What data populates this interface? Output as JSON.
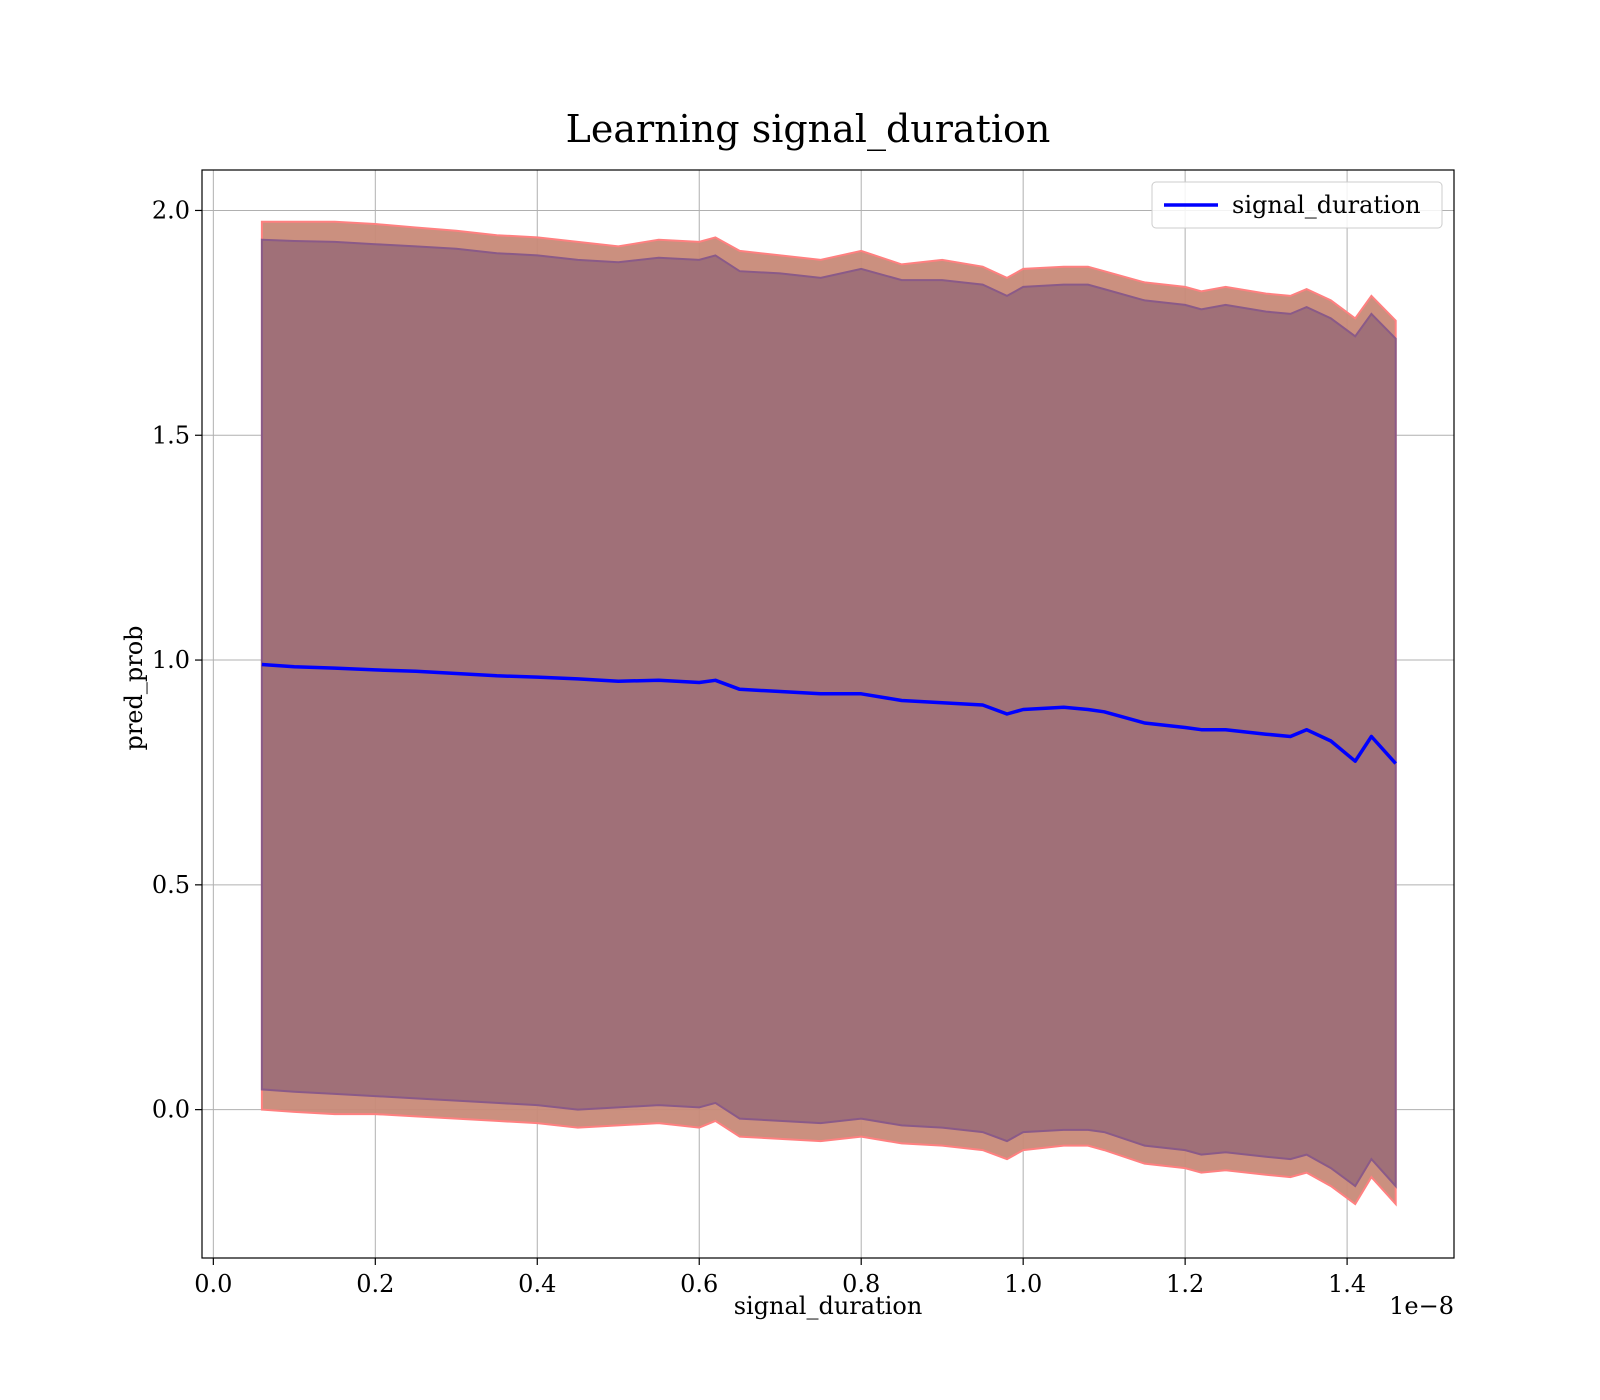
{
  "chart_data": {
    "type": "line",
    "title": "Learning signal_duration",
    "xlabel": "signal_duration",
    "ylabel": "pred_prob",
    "x_offset_label": "1e−8",
    "xlim": [
      -0.014,
      1.532
    ],
    "ylim": [
      -0.33,
      2.09
    ],
    "x_ticks": [
      0.0,
      0.2,
      0.4,
      0.6,
      0.8,
      1.0,
      1.2,
      1.4
    ],
    "x_tick_labels": [
      "0.0",
      "0.2",
      "0.4",
      "0.6",
      "0.8",
      "1.0",
      "1.2",
      "1.4"
    ],
    "y_ticks": [
      0.0,
      0.5,
      1.0,
      1.5,
      2.0
    ],
    "y_tick_labels": [
      "0.0",
      "0.5",
      "1.0",
      "1.5",
      "2.0"
    ],
    "grid": true,
    "legend_position": "upper right",
    "series": [
      {
        "name": "signal_duration",
        "color": "#0000ff",
        "x": [
          0.06,
          0.1,
          0.15,
          0.2,
          0.25,
          0.3,
          0.35,
          0.4,
          0.45,
          0.5,
          0.55,
          0.6,
          0.62,
          0.65,
          0.7,
          0.75,
          0.8,
          0.85,
          0.9,
          0.95,
          0.98,
          1.0,
          1.05,
          1.08,
          1.1,
          1.15,
          1.2,
          1.22,
          1.25,
          1.3,
          1.33,
          1.35,
          1.38,
          1.41,
          1.43,
          1.46
        ],
        "y": [
          0.99,
          0.985,
          0.982,
          0.978,
          0.975,
          0.97,
          0.965,
          0.962,
          0.958,
          0.953,
          0.955,
          0.95,
          0.955,
          0.935,
          0.93,
          0.925,
          0.925,
          0.91,
          0.905,
          0.9,
          0.88,
          0.89,
          0.895,
          0.89,
          0.885,
          0.86,
          0.85,
          0.845,
          0.845,
          0.835,
          0.83,
          0.845,
          0.82,
          0.775,
          0.83,
          0.77
        ]
      }
    ],
    "bands": [
      {
        "label": "outer band",
        "fill_color": "#c88a78",
        "edge_color": "#ff8080",
        "x": [
          0.06,
          0.1,
          0.15,
          0.2,
          0.25,
          0.3,
          0.35,
          0.4,
          0.45,
          0.5,
          0.55,
          0.6,
          0.62,
          0.65,
          0.7,
          0.75,
          0.8,
          0.85,
          0.9,
          0.95,
          0.98,
          1.0,
          1.05,
          1.08,
          1.1,
          1.15,
          1.2,
          1.22,
          1.25,
          1.3,
          1.33,
          1.35,
          1.38,
          1.41,
          1.43,
          1.46
        ],
        "upper": [
          1.975,
          1.975,
          1.975,
          1.97,
          1.962,
          1.955,
          1.945,
          1.94,
          1.93,
          1.92,
          1.935,
          1.93,
          1.94,
          1.91,
          1.9,
          1.89,
          1.91,
          1.88,
          1.89,
          1.875,
          1.85,
          1.87,
          1.875,
          1.875,
          1.865,
          1.84,
          1.83,
          1.82,
          1.83,
          1.815,
          1.81,
          1.825,
          1.8,
          1.76,
          1.81,
          1.755
        ],
        "lower": [
          0.0,
          -0.005,
          -0.01,
          -0.01,
          -0.015,
          -0.02,
          -0.025,
          -0.03,
          -0.04,
          -0.035,
          -0.03,
          -0.04,
          -0.025,
          -0.06,
          -0.065,
          -0.07,
          -0.06,
          -0.075,
          -0.08,
          -0.09,
          -0.11,
          -0.09,
          -0.08,
          -0.08,
          -0.09,
          -0.12,
          -0.13,
          -0.14,
          -0.135,
          -0.145,
          -0.15,
          -0.14,
          -0.17,
          -0.21,
          -0.15,
          -0.21
        ]
      },
      {
        "label": "inner band",
        "fill_color": "#a07078",
        "edge_color": "#8a5a88",
        "x": [
          0.06,
          0.1,
          0.15,
          0.2,
          0.25,
          0.3,
          0.35,
          0.4,
          0.45,
          0.5,
          0.55,
          0.6,
          0.62,
          0.65,
          0.7,
          0.75,
          0.8,
          0.85,
          0.9,
          0.95,
          0.98,
          1.0,
          1.05,
          1.08,
          1.1,
          1.15,
          1.2,
          1.22,
          1.25,
          1.3,
          1.33,
          1.35,
          1.38,
          1.41,
          1.43,
          1.46
        ],
        "upper": [
          1.935,
          1.932,
          1.93,
          1.925,
          1.92,
          1.915,
          1.905,
          1.9,
          1.89,
          1.885,
          1.895,
          1.89,
          1.9,
          1.865,
          1.86,
          1.85,
          1.87,
          1.845,
          1.845,
          1.835,
          1.81,
          1.83,
          1.835,
          1.835,
          1.825,
          1.8,
          1.79,
          1.78,
          1.79,
          1.775,
          1.77,
          1.785,
          1.76,
          1.72,
          1.77,
          1.715
        ],
        "lower": [
          0.045,
          0.04,
          0.035,
          0.03,
          0.025,
          0.02,
          0.015,
          0.01,
          0.0,
          0.005,
          0.01,
          0.005,
          0.015,
          -0.02,
          -0.025,
          -0.03,
          -0.02,
          -0.035,
          -0.04,
          -0.05,
          -0.07,
          -0.05,
          -0.045,
          -0.045,
          -0.05,
          -0.08,
          -0.09,
          -0.1,
          -0.095,
          -0.105,
          -0.11,
          -0.1,
          -0.13,
          -0.17,
          -0.11,
          -0.17
        ]
      }
    ]
  }
}
